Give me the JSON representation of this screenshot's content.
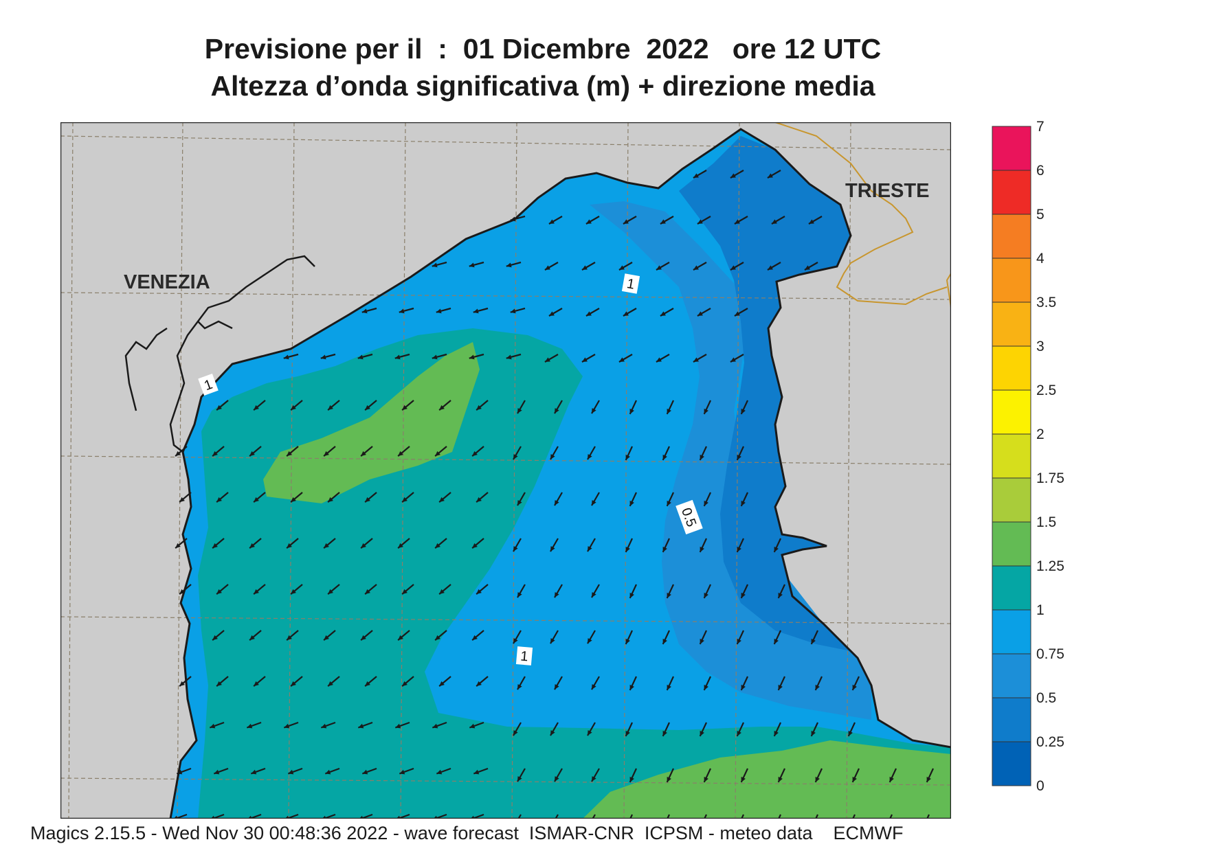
{
  "header": {
    "title_line1": "Previsione per il  :  01 Dicembre  2022   ore 12 UTC",
    "title_line2": "Altezza d’onda significativa (m) + direzione media"
  },
  "map": {
    "region": "Northern Adriatic Sea",
    "cities": [
      {
        "name": "VENEZIA"
      },
      {
        "name": "TRIESTE"
      }
    ],
    "contour_labels": [
      "1",
      "1",
      "0.5",
      "1"
    ],
    "colors": {
      "land": "#cccccc",
      "coastline": "#1a1a1a",
      "border": "#c8962e",
      "arrow": "#1a1a1a"
    }
  },
  "legend": {
    "labels": [
      "0",
      "0.25",
      "0.5",
      "0.75",
      "1",
      "1.25",
      "1.5",
      "1.75",
      "2",
      "2.5",
      "3",
      "3.5",
      "4",
      "5",
      "6",
      "7"
    ],
    "colors": [
      "#0062b6",
      "#0f7ccb",
      "#1c8fd8",
      "#0aa0e6",
      "#05a6a4",
      "#63bb54",
      "#a9cc3a",
      "#d6de1c",
      "#fcf200",
      "#fdd402",
      "#f9b214",
      "#f8961a",
      "#f57d22",
      "#ee2b26",
      "#ea145b"
    ]
  },
  "footer": {
    "text": "Magics 2.15.5 - Wed Nov 30 00:48:36 2022 - wave forecast  ISMAR-CNR  ICPSM - meteo data    ECMWF"
  }
}
